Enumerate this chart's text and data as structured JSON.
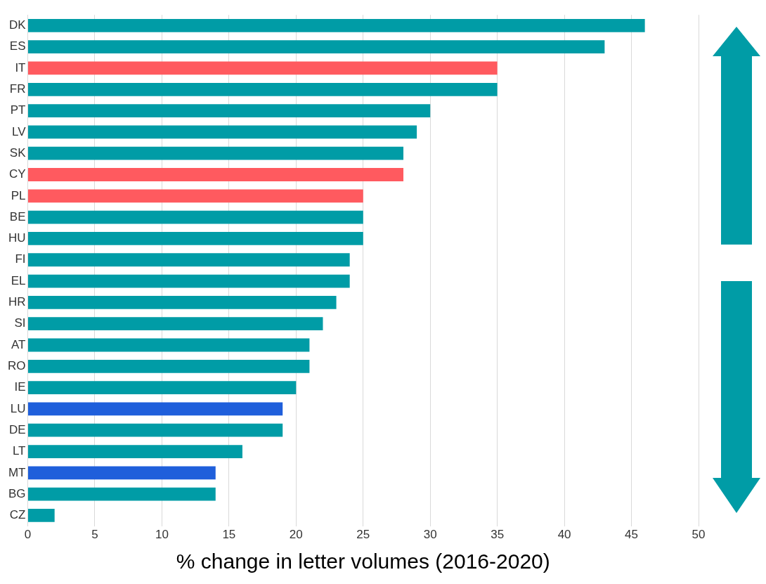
{
  "chart_data": {
    "type": "bar",
    "orientation": "horizontal",
    "xlabel": "% change in letter volumes (2016-2020)",
    "categories": [
      "DK",
      "ES",
      "IT",
      "FR",
      "PT",
      "LV",
      "SK",
      "CY",
      "PL",
      "BE",
      "HU",
      "FI",
      "EL",
      "HR",
      "SI",
      "AT",
      "RO",
      "IE",
      "LU",
      "DE",
      "LT",
      "MT",
      "BG",
      "CZ"
    ],
    "values": [
      46,
      43,
      35,
      35,
      30,
      29,
      28,
      28,
      25,
      25,
      25,
      24,
      24,
      23,
      22,
      21,
      21,
      20,
      19,
      19,
      16,
      14,
      14,
      2
    ],
    "colors": [
      "#009ca6",
      "#009ca6",
      "#ff5a5f",
      "#009ca6",
      "#009ca6",
      "#009ca6",
      "#009ca6",
      "#ff5a5f",
      "#ff5a5f",
      "#009ca6",
      "#009ca6",
      "#009ca6",
      "#009ca6",
      "#009ca6",
      "#009ca6",
      "#009ca6",
      "#009ca6",
      "#009ca6",
      "#1f5fdb",
      "#009ca6",
      "#009ca6",
      "#1f5fdb",
      "#009ca6",
      "#009ca6"
    ],
    "xlim": [
      0,
      50
    ],
    "xticks": [
      0,
      5,
      10,
      15,
      20,
      25,
      30,
      35,
      40,
      45,
      50
    ],
    "grid": "x"
  }
}
